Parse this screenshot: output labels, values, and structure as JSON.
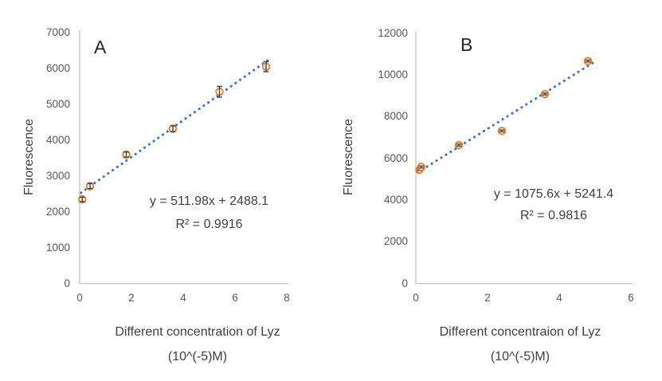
{
  "colors": {
    "background": "#ffffff",
    "marker": "#ED7D31",
    "trendline": "#4472C4",
    "error_bar": "#404040",
    "axis_line": "#C9C9C9",
    "tick_text": "#595959",
    "label_text": "#404040"
  },
  "chart_data": [
    {
      "id": "A",
      "type": "scatter",
      "panel_label": "A",
      "ylabel": "Fluorescence",
      "xlabel_line1": "Different concentration of Lyz",
      "xlabel_line2": "(10^(-5)M)",
      "equation": "y = 511.98x + 2488.1",
      "r_squared": "R² = 0.9916",
      "x": [
        0.1,
        0.4,
        1.8,
        3.6,
        5.4,
        7.2
      ],
      "y": [
        2330,
        2700,
        3580,
        4300,
        5330,
        6030
      ],
      "y_err": [
        60,
        70,
        70,
        80,
        150,
        140
      ],
      "trendline": {
        "slope": 511.98,
        "intercept": 2488.1,
        "x_range": [
          0.05,
          7.4
        ],
        "style": "dotted"
      },
      "xlim": [
        0,
        8
      ],
      "ylim": [
        0,
        7000
      ],
      "xticks": [
        0,
        2,
        4,
        6,
        8
      ],
      "yticks": [
        0,
        1000,
        2000,
        3000,
        4000,
        5000,
        6000,
        7000
      ],
      "grid": false,
      "legend": "none"
    },
    {
      "id": "B",
      "type": "scatter",
      "panel_label": "B",
      "ylabel": "Fluorescence",
      "xlabel_line1": "Different concentraion of Lyz",
      "xlabel_line2": "(10^(-5)M)",
      "equation": "y = 1075.6x + 5241.4",
      "r_squared": "R² = 0.9816",
      "x": [
        0.1,
        0.15,
        1.2,
        2.4,
        3.6,
        4.8
      ],
      "y": [
        5430,
        5560,
        6610,
        7290,
        9060,
        10640
      ],
      "y_err": [
        45,
        45,
        45,
        45,
        45,
        45
      ],
      "trendline": {
        "slope": 1075.6,
        "intercept": 5241.4,
        "x_range": [
          0.05,
          5.0
        ],
        "style": "dotted"
      },
      "xlim": [
        0,
        6
      ],
      "ylim": [
        0,
        12000
      ],
      "xticks": [
        0,
        2,
        4,
        6
      ],
      "yticks": [
        0,
        2000,
        4000,
        6000,
        8000,
        10000,
        12000
      ],
      "grid": false,
      "legend": "none"
    }
  ]
}
